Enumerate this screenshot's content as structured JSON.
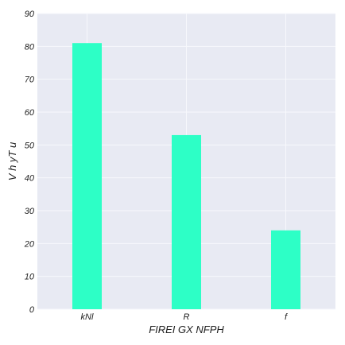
{
  "chart_data": {
    "type": "bar",
    "title": "",
    "xlabel": "FIREI GX NFPH",
    "ylabel": "V h yT u",
    "categories": [
      "kNl",
      "R",
      "f"
    ],
    "values": [
      81,
      53,
      24
    ],
    "ylim": [
      0,
      90
    ],
    "yticks": [
      "0",
      "10",
      "20",
      "30",
      "40",
      "50",
      "60",
      "70",
      "80",
      "90"
    ],
    "grid": true,
    "colors": {
      "bar": "#2dffc6",
      "plot_background": "#e8eaf3",
      "grid": "#f7f8fc"
    }
  }
}
